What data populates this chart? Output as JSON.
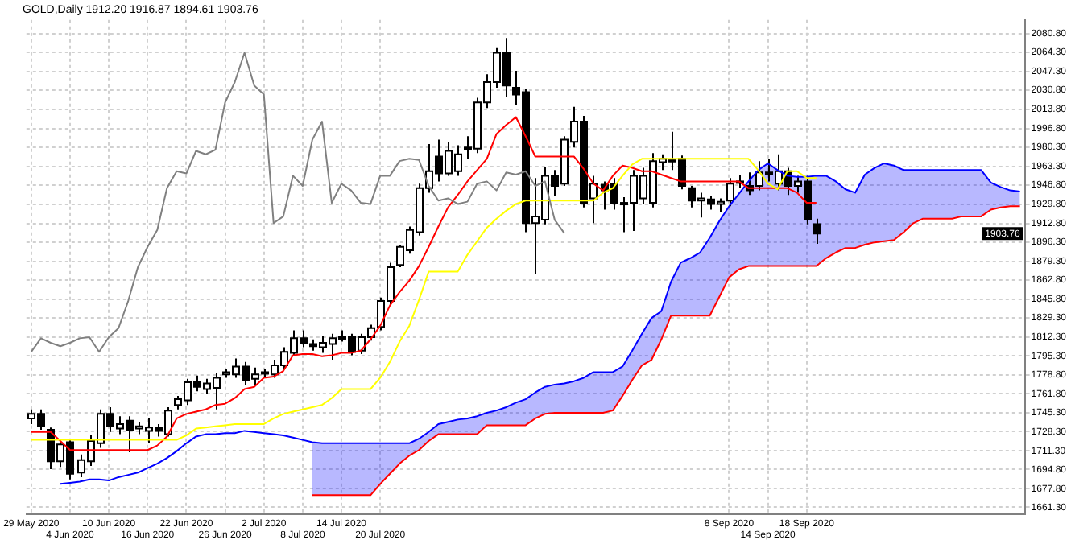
{
  "chart_data": {
    "type": "candlestick",
    "title": "GOLD,Daily 1912.20 1916.87 1894.61 1903.76",
    "categories": [
      "29 May 2020",
      null,
      null,
      null,
      "4 Jun 2020",
      null,
      null,
      null,
      "10 Jun 2020",
      null,
      null,
      null,
      "16 Jun 2020",
      null,
      null,
      null,
      "22 Jun 2020",
      null,
      null,
      null,
      "26 Jun 2020",
      null,
      null,
      null,
      "2 Jul 2020",
      null,
      null,
      null,
      "8 Jul 2020",
      null,
      null,
      null,
      "14 Jul 2020",
      null,
      null,
      null,
      "20 Jul 2020",
      null,
      null,
      null,
      null,
      null,
      null,
      null,
      null,
      null,
      null,
      null,
      null,
      null,
      null,
      null,
      null,
      null,
      null,
      null,
      null,
      null,
      null,
      null,
      null,
      null,
      null,
      null,
      null,
      null,
      null,
      null,
      null,
      null,
      null,
      null,
      "8 Sep 2020",
      null,
      null,
      null,
      "14 Sep 2020",
      null,
      null,
      null,
      "18 Sep 2020",
      null,
      null,
      null,
      null,
      null,
      null,
      null,
      null,
      null,
      null,
      null,
      null,
      null,
      null,
      null,
      null,
      null,
      null,
      null,
      null,
      null,
      null
    ],
    "ohlc": [
      [
        1740,
        1748,
        1735,
        1744
      ],
      [
        1744,
        1748,
        1730,
        1733
      ],
      [
        1730,
        1732,
        1695,
        1702
      ],
      [
        1702,
        1722,
        1697,
        1717
      ],
      [
        1719,
        1722,
        1686,
        1691
      ],
      [
        1692,
        1708,
        1688,
        1703
      ],
      [
        1702,
        1725,
        1698,
        1720
      ],
      [
        1718,
        1748,
        1714,
        1744
      ],
      [
        1744,
        1750,
        1728,
        1733
      ],
      [
        1731,
        1742,
        1726,
        1735
      ],
      [
        1738,
        1742,
        1710,
        1730
      ],
      [
        1731,
        1737,
        1726,
        1733
      ],
      [
        1729,
        1740,
        1718,
        1732
      ],
      [
        1732,
        1735,
        1724,
        1729
      ],
      [
        1726,
        1750,
        1724,
        1747
      ],
      [
        1752,
        1760,
        1748,
        1757
      ],
      [
        1756,
        1775,
        1752,
        1772
      ],
      [
        1772,
        1778,
        1764,
        1768
      ],
      [
        1766,
        1775,
        1762,
        1771
      ],
      [
        1767,
        1780,
        1748,
        1776
      ],
      [
        1779,
        1784,
        1776,
        1781
      ],
      [
        1779,
        1793,
        1776,
        1786
      ],
      [
        1786,
        1790,
        1770,
        1774
      ],
      [
        1775,
        1785,
        1770,
        1779
      ],
      [
        1780,
        1784,
        1776,
        1781
      ],
      [
        1779,
        1792,
        1776,
        1787
      ],
      [
        1787,
        1803,
        1784,
        1799
      ],
      [
        1798,
        1818,
        1796,
        1811
      ],
      [
        1811,
        1818,
        1803,
        1807
      ],
      [
        1806,
        1810,
        1800,
        1804
      ],
      [
        1803,
        1813,
        1798,
        1807
      ],
      [
        1806,
        1815,
        1792,
        1811
      ],
      [
        1811,
        1818,
        1808,
        1812
      ],
      [
        1812,
        1815,
        1796,
        1799
      ],
      [
        1800,
        1815,
        1797,
        1812
      ],
      [
        1812,
        1823,
        1809,
        1820
      ],
      [
        1821,
        1847,
        1818,
        1844
      ],
      [
        1844,
        1878,
        1841,
        1874
      ],
      [
        1876,
        1894,
        1874,
        1892
      ],
      [
        1889,
        1910,
        1886,
        1907
      ],
      [
        1905,
        1948,
        1902,
        1944
      ],
      [
        1944,
        1983,
        1940,
        1959
      ],
      [
        1972,
        1987,
        1950,
        1957
      ],
      [
        1957,
        1985,
        1955,
        1977
      ],
      [
        1959,
        1982,
        1955,
        1974
      ],
      [
        1980,
        1990,
        1970,
        1978
      ],
      [
        1979,
        2024,
        1975,
        2020
      ],
      [
        2020,
        2045,
        2015,
        2038
      ],
      [
        2038,
        2068,
        2033,
        2064
      ],
      [
        2064,
        2077,
        2025,
        2035
      ],
      [
        2033,
        2048,
        2018,
        2027
      ],
      [
        2029,
        2032,
        1905,
        1913
      ],
      [
        1913,
        1953,
        1868,
        1919
      ],
      [
        1916,
        1963,
        1912,
        1955
      ],
      [
        1955,
        1960,
        1937,
        1946
      ],
      [
        1948,
        1990,
        1946,
        1987
      ],
      [
        1985,
        2016,
        1980,
        2003
      ],
      [
        2003,
        2008,
        1927,
        1931
      ],
      [
        1935,
        1955,
        1913,
        1948
      ],
      [
        1947,
        1950,
        1925,
        1942
      ],
      [
        1948,
        1953,
        1925,
        1931
      ],
      [
        1931,
        1936,
        1905,
        1930
      ],
      [
        1931,
        1960,
        1906,
        1955
      ],
      [
        1935,
        1962,
        1930,
        1955
      ],
      [
        1931,
        1975,
        1927,
        1968
      ],
      [
        1967,
        1974,
        1960,
        1970
      ],
      [
        1968,
        1994,
        1960,
        1969
      ],
      [
        1970,
        1973,
        1943,
        1946
      ],
      [
        1944,
        1946,
        1927,
        1933
      ],
      [
        1933,
        1940,
        1918,
        1935
      ],
      [
        1934,
        1937,
        1925,
        1930
      ],
      [
        1930,
        1935,
        1923,
        1932
      ],
      [
        1933,
        1953,
        1928,
        1948
      ],
      [
        1949,
        1956,
        1944,
        1950
      ],
      [
        1946,
        1958,
        1938,
        1942
      ],
      [
        1946,
        1968,
        1942,
        1958
      ],
      [
        1958,
        1970,
        1950,
        1956
      ],
      [
        1948,
        1974,
        1942,
        1959
      ],
      [
        1959,
        1962,
        1938,
        1946
      ],
      [
        1946,
        1955,
        1940,
        1950
      ],
      [
        1950,
        1955,
        1912,
        1916
      ],
      [
        1912.2,
        1916.87,
        1894.61,
        1903.76
      ],
      null,
      null,
      null,
      null,
      null,
      null,
      null,
      null,
      null,
      null,
      null,
      null,
      null,
      null,
      null,
      null,
      null,
      null,
      null,
      null,
      null
    ],
    "series": [
      {
        "type": "line",
        "color": "#808080",
        "values": [
          1799,
          1811,
          1807,
          1804,
          1807,
          1811,
          1812,
          1799,
          1812,
          1820,
          1844,
          1874,
          1892,
          1907,
          1944,
          1959,
          1957,
          1977,
          1974,
          1978,
          2020,
          2038,
          2064,
          2035,
          2027,
          1913,
          1919,
          1955,
          1946,
          1987,
          2003,
          1931,
          1948,
          1942,
          1931,
          1930,
          1955,
          1955,
          1968,
          1970,
          1969,
          1946,
          1933,
          1935,
          1930,
          1932,
          1948,
          1950,
          1942,
          1958,
          1956,
          1959,
          1946,
          1950,
          1916,
          1904,
          null,
          null,
          null,
          null,
          null,
          null,
          null,
          null,
          null,
          null,
          null,
          null,
          null,
          null,
          null,
          null,
          null,
          null,
          null,
          null,
          null,
          null,
          null,
          null,
          null,
          null,
          null,
          null,
          null,
          null,
          null,
          null,
          null,
          null,
          null,
          null,
          null,
          null,
          null,
          null,
          null,
          null,
          null,
          null,
          null,
          null,
          null
        ]
      },
      {
        "type": "line",
        "color": "#ffff00",
        "values": [
          1721,
          1721,
          1721,
          1721,
          1721,
          1721,
          1721,
          1721,
          1721,
          1721,
          1721,
          1721,
          1721,
          1721,
          1721,
          1721,
          1725,
          1731,
          1732,
          1733,
          1734,
          1735,
          1735,
          1735,
          1735,
          1740,
          1744,
          1746,
          1748,
          1750,
          1752,
          1758,
          1766,
          1766,
          1766,
          1766,
          1776,
          1790,
          1808,
          1822,
          1845,
          1870,
          1870,
          1870,
          1870,
          1885,
          1897,
          1909,
          1917,
          1924,
          1930,
          1933,
          1933,
          1933,
          1933,
          1933,
          1933,
          1933,
          1933,
          1940,
          1944,
          1955,
          1965,
          1970,
          1970,
          1970,
          1970,
          1970,
          1970,
          1970,
          1970,
          1970,
          1970,
          1970,
          1970,
          1960,
          1948,
          1943,
          1959,
          1959,
          1953,
          1953,
          null,
          null,
          null,
          null,
          null,
          null,
          null,
          null,
          null,
          null,
          null,
          null,
          null,
          null,
          null,
          null,
          null,
          null,
          null,
          null,
          null
        ]
      },
      {
        "type": "line",
        "color": "#ff0000",
        "values": [
          1728,
          1728,
          1728,
          1720,
          1712,
          1712,
          1712,
          1712,
          1712,
          1712,
          1712,
          1712,
          1712,
          1716,
          1724,
          1740,
          1744,
          1746,
          1748,
          1752,
          1753,
          1758,
          1766,
          1768,
          1776,
          1777,
          1782,
          1796,
          1797,
          1797,
          1795,
          1796,
          1798,
          1798,
          1800,
          1810,
          1822,
          1840,
          1852,
          1862,
          1875,
          1892,
          1910,
          1927,
          1938,
          1950,
          1960,
          1970,
          1992,
          2000,
          2007,
          1990,
          1972,
          1972,
          1972,
          1972,
          1972,
          1961,
          1948,
          1942,
          1955,
          1964,
          1962,
          1959,
          1959,
          1956,
          1953,
          1950,
          1950,
          1950,
          1950,
          1950,
          1950,
          1950,
          1944,
          1944,
          1944,
          1944,
          1944,
          1940,
          1931,
          1931,
          null,
          null,
          null,
          null,
          null,
          null,
          null,
          null,
          null,
          null,
          null,
          null,
          null,
          null,
          null,
          null,
          null,
          null,
          null,
          null,
          null
        ]
      },
      {
        "type": "line",
        "color": "#0000ff",
        "values": [
          null,
          null,
          null,
          1682,
          1683,
          1684,
          1686,
          1686,
          1685,
          1688,
          1690,
          1692,
          1696,
          1700,
          1705,
          1711,
          1718,
          1724,
          1726,
          1726,
          1727,
          1727,
          1729,
          1728,
          1727,
          1726,
          1725,
          1723,
          1721,
          1719,
          1718,
          1718,
          1718,
          1718,
          1718,
          1718,
          1718,
          1718,
          1718,
          1718,
          1722,
          1728,
          1735,
          1737,
          1739,
          1740,
          1742,
          1745,
          1747,
          1750,
          1754,
          1757,
          1763,
          1768,
          1770,
          1771,
          1773,
          1776,
          1781,
          1781,
          1781,
          1786,
          1800,
          1815,
          1829,
          1835,
          1861,
          1878,
          1882,
          1887,
          1900,
          1915,
          1928,
          1939,
          1950,
          1960,
          1966,
          1960,
          1955,
          1954,
          1954,
          1955,
          1955,
          1950,
          1943,
          1940,
          1956,
          1962,
          1966,
          1964,
          1960,
          1960,
          1960,
          1960,
          1960,
          1960,
          1960,
          1960,
          1960,
          1949,
          1945,
          1942,
          1941
        ],
        "lower": [
          null,
          null,
          null,
          null,
          null,
          null,
          null,
          null,
          null,
          null,
          null,
          null,
          null,
          null,
          null,
          null,
          null,
          null,
          null,
          null,
          null,
          null,
          null,
          null,
          null,
          null,
          null,
          null,
          null,
          1672,
          1672,
          1672,
          1672,
          1672,
          1672,
          1672,
          1682,
          1691,
          1700,
          1707,
          1712,
          1720,
          1726,
          1726,
          1726,
          1726,
          1726,
          1734,
          1734,
          1734,
          1734,
          1734,
          1740,
          1744,
          1745,
          1745,
          1745,
          1745,
          1745,
          1745,
          1747,
          1760,
          1774,
          1787,
          1792,
          1810,
          1831,
          1831,
          1831,
          1831,
          1831,
          1848,
          1865,
          1872,
          1875,
          1875,
          1875,
          1875,
          1875,
          1875,
          1875,
          1875,
          1882,
          1887,
          1891,
          1891,
          1894,
          1896,
          1897,
          1898,
          1905,
          1913,
          1917,
          1917,
          1917,
          1917,
          1919,
          1919,
          1919,
          1925,
          1927,
          1928,
          1928
        ],
        "upper": [
          null,
          null,
          null,
          null,
          null,
          null,
          null,
          null,
          null,
          null,
          null,
          null,
          null,
          null,
          null,
          null,
          null,
          null,
          null,
          null,
          null,
          null,
          null,
          null,
          null,
          null,
          null,
          null,
          null,
          1719,
          1718,
          1718,
          1718,
          1718,
          1718,
          1718,
          1718,
          1718,
          1718,
          1718,
          1722,
          1728,
          1735,
          1737,
          1739,
          1740,
          1742,
          1745,
          1747,
          1750,
          1754,
          1757,
          1763,
          1768,
          1770,
          1771,
          1773,
          1776,
          1781,
          1781,
          1781,
          1786,
          1800,
          1815,
          1829,
          1835,
          1861,
          1878,
          1882,
          1887,
          1900,
          1915,
          1928,
          1939,
          1950,
          1960,
          1966,
          1960,
          1955,
          1954,
          1954,
          1955,
          1955,
          1950,
          1943,
          1940,
          1956,
          1962,
          1966,
          1964,
          1960,
          1960,
          1960,
          1960,
          1960,
          1960,
          1960,
          1960,
          1960,
          1949,
          1945,
          1942,
          1941
        ]
      },
      {
        "type": "line",
        "color": "#ff0000",
        "values": [
          null,
          null,
          null,
          null,
          null,
          null,
          null,
          null,
          null,
          null,
          null,
          null,
          null,
          null,
          null,
          null,
          null,
          null,
          null,
          null,
          null,
          null,
          null,
          null,
          null,
          null,
          null,
          null,
          null,
          1672,
          1672,
          1672,
          1672,
          1672,
          1672,
          1672,
          1682,
          1691,
          1700,
          1707,
          1712,
          1720,
          1726,
          1726,
          1726,
          1726,
          1726,
          1734,
          1734,
          1734,
          1734,
          1734,
          1740,
          1744,
          1745,
          1745,
          1745,
          1745,
          1745,
          1745,
          1747,
          1760,
          1774,
          1787,
          1792,
          1810,
          1831,
          1831,
          1831,
          1831,
          1831,
          1848,
          1865,
          1872,
          1875,
          1875,
          1875,
          1875,
          1875,
          1875,
          1875,
          1875,
          1882,
          1887,
          1891,
          1891,
          1894,
          1896,
          1897,
          1898,
          1905,
          1913,
          1917,
          1917,
          1917,
          1917,
          1919,
          1919,
          1919,
          1925,
          1927,
          1928,
          1928
        ]
      }
    ],
    "ylim": [
      1655,
      2093
    ],
    "yticks": [
      {
        "value": 2080.8,
        "label": "2080.80"
      },
      {
        "value": 2064.3,
        "label": "2064.30"
      },
      {
        "value": 2047.3,
        "label": "2047.30"
      },
      {
        "value": 2030.8,
        "label": "2030.80"
      },
      {
        "value": 2013.8,
        "label": "2013.80"
      },
      {
        "value": 1996.8,
        "label": "1996.80"
      },
      {
        "value": 1980.3,
        "label": "1980.30"
      },
      {
        "value": 1963.3,
        "label": "1963.30"
      },
      {
        "value": 1946.8,
        "label": "1946.80"
      },
      {
        "value": 1929.8,
        "label": "1929.80"
      },
      {
        "value": 1912.8,
        "label": "1912.80"
      },
      {
        "value": 1896.3,
        "label": "1896.30"
      },
      {
        "value": 1879.3,
        "label": "1879.30"
      },
      {
        "value": 1862.8,
        "label": "1862.80"
      },
      {
        "value": 1845.8,
        "label": "1845.80"
      },
      {
        "value": 1829.3,
        "label": "1829.30"
      },
      {
        "value": 1812.3,
        "label": "1812.30"
      },
      {
        "value": 1795.3,
        "label": "1795.30"
      },
      {
        "value": 1778.8,
        "label": "1778.80"
      },
      {
        "value": 1761.8,
        "label": "1761.80"
      },
      {
        "value": 1745.3,
        "label": "1745.30"
      },
      {
        "value": 1728.3,
        "label": "1728.30"
      },
      {
        "value": 1711.3,
        "label": "1711.30"
      },
      {
        "value": 1694.8,
        "label": "1694.80"
      },
      {
        "value": 1677.8,
        "label": "1677.80"
      },
      {
        "value": 1661.3,
        "label": "1661.30"
      }
    ],
    "grid": true,
    "annotations": [
      {
        "text": "1903.76",
        "y": 1903.76
      }
    ]
  }
}
